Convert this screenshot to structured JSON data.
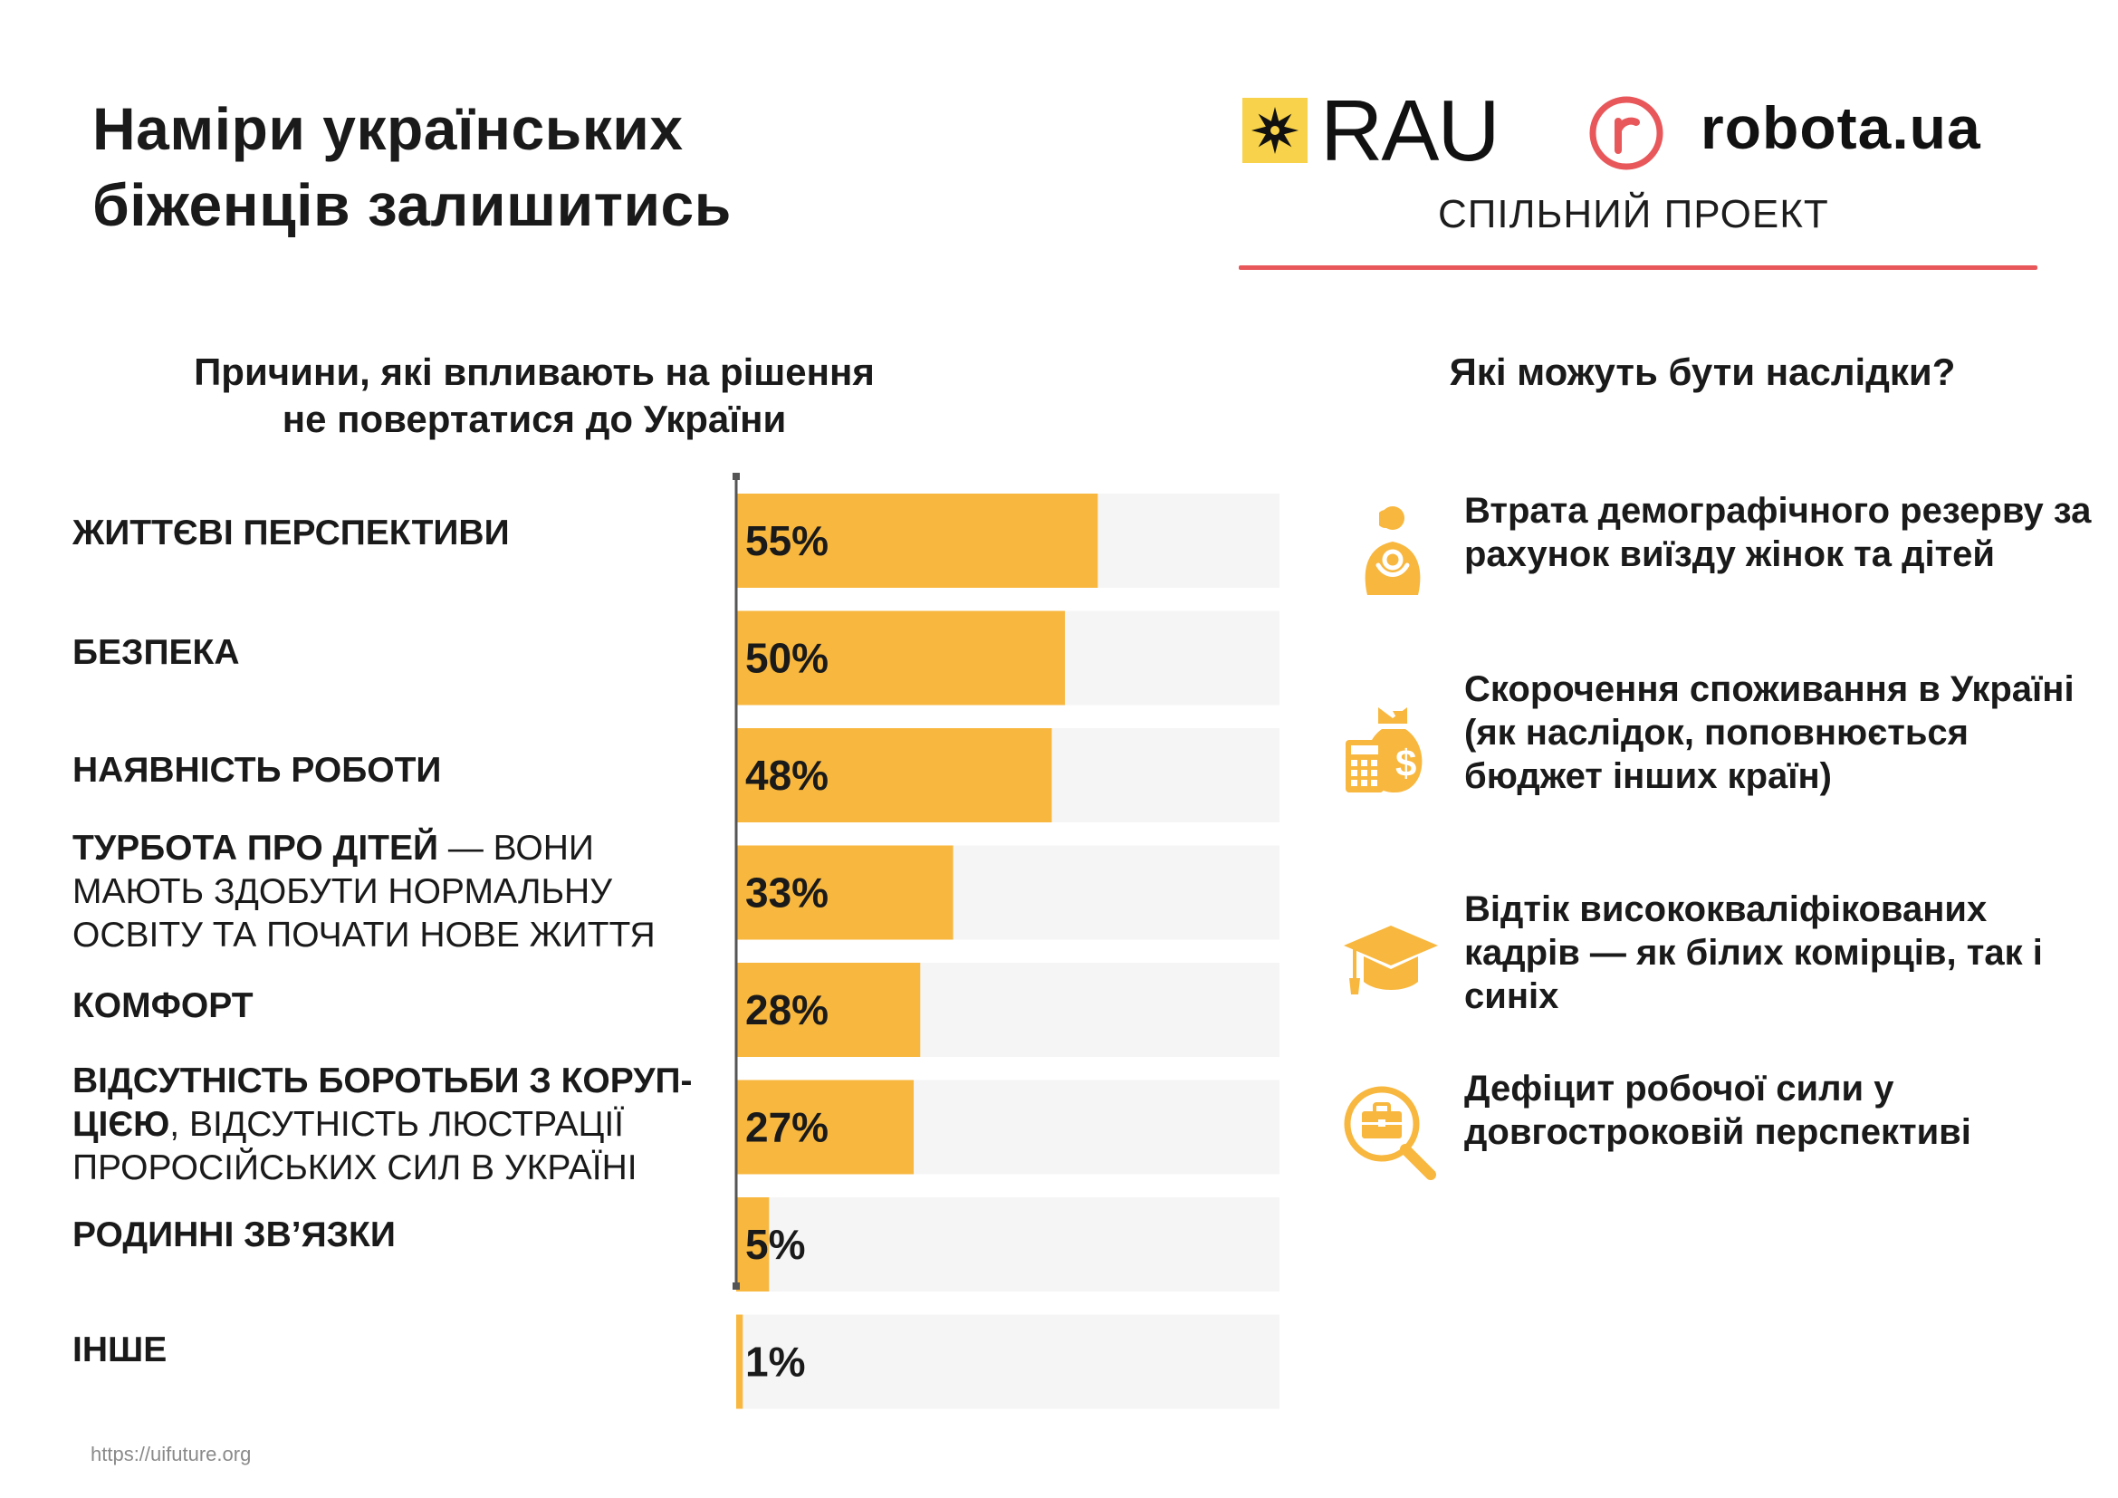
{
  "title": {
    "line1": "Наміри українських",
    "line2": "біженців залишитись"
  },
  "brand": {
    "rau": "RAU",
    "robota": "robota.ua",
    "joint_project": "СПІЛЬНИЙ ПРОЕКТ",
    "line_color": "#e8575a"
  },
  "left_heading": {
    "line1": "Причини, які впливають на рішення",
    "line2": "не повертатися до України"
  },
  "right_heading": "Які можуть бути наслідки?",
  "chart_data": {
    "type": "bar",
    "orientation": "horizontal",
    "title": "Причини, які впливають на рішення не повертатися до України",
    "xlim": [
      0,
      100
    ],
    "unit": "%",
    "bar_color": "#f8b73e",
    "track_color": "#f5f5f5",
    "categories": [
      {
        "bold": "ЖИТТЄВІ ПЕРСПЕКТИВИ",
        "rest": ""
      },
      {
        "bold": "БЕЗПЕКА",
        "rest": ""
      },
      {
        "bold": "НАЯВНІСТЬ РОБОТИ",
        "rest": ""
      },
      {
        "bold": "ТУРБОТА ПРО ДІТЕЙ",
        "rest": " — ВОНИ МАЮТЬ ЗДОБУТИ НОРМАЛЬНУ ОСВІТУ ТА ПОЧАТИ НОВЕ ЖИТТЯ"
      },
      {
        "bold": "КОМФОРТ",
        "rest": ""
      },
      {
        "bold": "ВІДСУТНІСТЬ БОРОТЬБИ З КОРУП-ЦІЄЮ",
        "rest": ", ВІДСУТНІСТЬ ЛЮСТРАЦІЇ ПРОРОСІЙСЬКИХ СИЛ В УКРАЇНІ"
      },
      {
        "bold": "РОДИННІ ЗВ’ЯЗКИ",
        "rest": ""
      },
      {
        "bold": "ІНШЕ",
        "rest": ""
      }
    ],
    "values": [
      55,
      50,
      48,
      33,
      28,
      27,
      5,
      1
    ],
    "labels": [
      "55%",
      "50%",
      "48%",
      "33%",
      "28%",
      "27%",
      "5%",
      "1%"
    ]
  },
  "consequences": [
    {
      "icon": "mother-child-icon",
      "text": "Втрата демографічного резерву за рахунок виїзду жінок та дітей"
    },
    {
      "icon": "money-calculator-icon",
      "text": "Скорочення споживання в Україні (як наслідок, поповнюється бюджет інших країн)"
    },
    {
      "icon": "graduation-cap-icon",
      "text": "Відтік висококваліфікованих кадрів — як білих комірців, так і синіх"
    },
    {
      "icon": "briefcase-search-icon",
      "text": "Дефіцит робочої сили у довгостроковій перспективі"
    }
  ],
  "source": "https://uifuture.org"
}
